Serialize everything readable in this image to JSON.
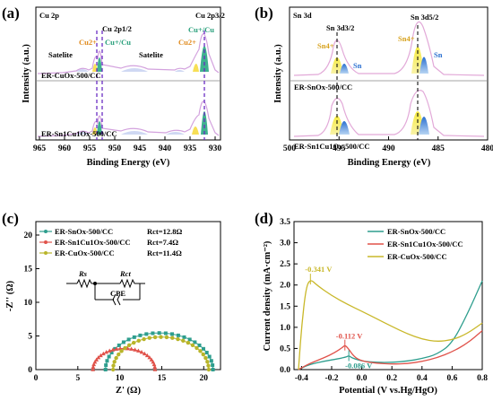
{
  "panel_a": {
    "label": "(a)",
    "corner": "Cu 2p",
    "xlabel": "Binding Energy (eV)",
    "ylabel": "Intensity (a.u.)",
    "xticks": [
      "965",
      "960",
      "955",
      "950",
      "945",
      "940",
      "935",
      "930"
    ],
    "ann": {
      "cu2p12": "Cu 2p1/2",
      "cu2p32": "Cu 2p3/2",
      "satelite1": "Satelite",
      "satelite2": "Satelite",
      "cu2plus1": "Cu2+",
      "cu1plus1": "Cu+/Cu",
      "cu1plus2": "Cu+/Cu",
      "cu2plus2": "Cu2+"
    },
    "samples": [
      "ER-CuOx-500/CC",
      "ER-Sn1Cu1Ox-500/CC"
    ]
  },
  "panel_b": {
    "label": "(b)",
    "corner": "Sn 3d",
    "xlabel": "Binding Energy (eV)",
    "ylabel": "Intensity (a.u.)",
    "xticks": [
      "500",
      "495",
      "490",
      "485",
      "480"
    ],
    "ann": {
      "sn3d32": "Sn 3d3/2",
      "sn3d52": "Sn 3d5/2",
      "sn4plus1": "Sn4+",
      "sn4plus2": "Sn4+",
      "sn1": "Sn",
      "sn2": "Sn"
    },
    "samples": [
      "ER-SnOx-500/CC",
      "ER-Sn1Cu1Ox-500/CC"
    ]
  },
  "panel_c": {
    "label": "(c)",
    "xlabel": "Z' (Ω)",
    "ylabel": "-Z'' (Ω)",
    "xticks": [
      "0",
      "5",
      "10",
      "15",
      "20"
    ],
    "yticks": [
      "0",
      "5",
      "10",
      "15",
      "20"
    ],
    "legend": [
      {
        "name": "ER-SnOx-500/CC",
        "rct": "Rct=12.8Ω",
        "color": "#2e9e8e"
      },
      {
        "name": "ER-Sn1Cu1Ox-500/CC",
        "rct": "Rct=7.4Ω",
        "color": "#e0524a"
      },
      {
        "name": "ER-CuOx-500/CC",
        "rct": "Rct=11.4Ω",
        "color": "#b9b52a"
      }
    ],
    "circuit": {
      "rs": "Rs",
      "rct": "Rct",
      "cpe": "CPE"
    }
  },
  "panel_d": {
    "label": "(d)",
    "xlabel": "Potential (V vs.Hg/HgO)",
    "ylabel": "Current density (mA·cm⁻²)",
    "xticks": [
      "-0.4",
      "-0.2",
      "0.0",
      "0.2",
      "0.4",
      "0.6",
      "0.8"
    ],
    "yticks": [
      "0.0",
      "0.5",
      "1.0",
      "1.5",
      "2.0",
      "2.5",
      "3.0",
      "3.5"
    ],
    "legend": [
      {
        "name": "ER-SnOx-500/CC",
        "color": "#2e9e8e"
      },
      {
        "name": "ER-Sn1Cu1Ox-500/CC",
        "color": "#e0524a"
      },
      {
        "name": "ER-CuOx-500/CC",
        "color": "#c9b82a"
      }
    ],
    "ann": {
      "cu": "-0.341 V",
      "sncu": "-0.112 V",
      "sn": "-0.086 V"
    }
  },
  "chart_data": [
    {
      "type": "line",
      "panel": "(a)",
      "xlabel": "Binding Energy (eV)",
      "ylabel": "Intensity (a.u.)",
      "xlim": [
        965,
        930
      ],
      "peaks_eV": {
        "Cu 2p1/2": 952.3,
        "Cu 2p3/2": 932.6,
        "Cu2+ (2p1/2)": 954.0,
        "Cu2+ (2p3/2)": 934.2
      }
    },
    {
      "type": "line",
      "panel": "(b)",
      "xlabel": "Binding Energy (eV)",
      "ylabel": "Intensity (a.u.)",
      "xlim": [
        500,
        480
      ],
      "peaks_eV": {
        "Sn 3d3/2 Sn4+": 495.0,
        "Sn 3d3/2 Sn": 494.2,
        "Sn 3d5/2 Sn4+": 486.6,
        "Sn 3d5/2 Sn": 485.6
      }
    },
    {
      "type": "scatter",
      "panel": "(c)",
      "xlabel": "Z' (Ω)",
      "ylabel": "-Z'' (Ω)",
      "xlim": [
        0,
        22
      ],
      "ylim": [
        0,
        22
      ],
      "series": [
        {
          "name": "ER-SnOx-500/CC",
          "rs": 8.3,
          "rct": 12.8
        },
        {
          "name": "ER-Sn1Cu1Ox-500/CC",
          "rs": 6.8,
          "rct": 7.4
        },
        {
          "name": "ER-CuOx-500/CC",
          "rs": 9.2,
          "rct": 11.4
        }
      ]
    },
    {
      "type": "line",
      "panel": "(d)",
      "xlabel": "Potential (V vs.Hg/HgO)",
      "ylabel": "Current density (mA·cm⁻²)",
      "xlim": [
        -0.45,
        0.8
      ],
      "ylim": [
        0,
        3.5
      ],
      "series": [
        {
          "name": "ER-SnOx-500/CC",
          "x": [
            -0.42,
            -0.35,
            -0.25,
            -0.15,
            -0.1,
            -0.086,
            -0.06,
            0.0,
            0.1,
            0.2,
            0.3,
            0.4,
            0.5,
            0.6,
            0.7,
            0.8
          ],
          "y": [
            0.0,
            0.12,
            0.2,
            0.26,
            0.3,
            0.33,
            0.27,
            0.2,
            0.17,
            0.17,
            0.2,
            0.26,
            0.36,
            0.62,
            1.3,
            2.1
          ]
        },
        {
          "name": "ER-Sn1Cu1Ox-500/CC",
          "x": [
            -0.42,
            -0.35,
            -0.25,
            -0.18,
            -0.13,
            -0.112,
            -0.09,
            -0.05,
            0.0,
            0.1,
            0.2,
            0.3,
            0.4,
            0.5,
            0.6,
            0.7,
            0.8
          ],
          "y": [
            0.0,
            0.14,
            0.28,
            0.4,
            0.52,
            0.58,
            0.5,
            0.3,
            0.2,
            0.15,
            0.13,
            0.14,
            0.19,
            0.28,
            0.42,
            0.62,
            0.92
          ]
        },
        {
          "name": "ER-CuOx-500/CC",
          "x": [
            -0.42,
            -0.4,
            -0.37,
            -0.341,
            -0.3,
            -0.2,
            -0.1,
            0.0,
            0.1,
            0.2,
            0.3,
            0.4,
            0.5,
            0.6,
            0.7,
            0.8
          ],
          "y": [
            0.0,
            1.0,
            1.95,
            2.14,
            2.0,
            1.75,
            1.55,
            1.38,
            1.2,
            1.02,
            0.85,
            0.72,
            0.66,
            0.7,
            0.85,
            1.1
          ]
        }
      ],
      "peak_annotations": [
        "-0.341 V",
        "-0.112 V",
        "-0.086 V"
      ]
    }
  ]
}
